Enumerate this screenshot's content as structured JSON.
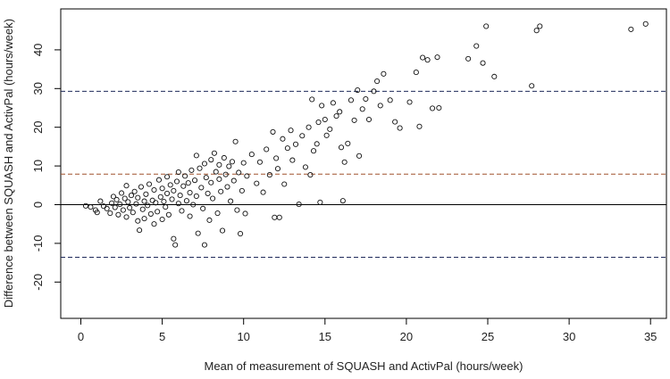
{
  "chart_data": {
    "type": "scatter",
    "title": "",
    "xlabel": "Mean of measurement of SQUASH and ActivPal (hours/week)",
    "ylabel": "Difference between SQUASH and ActivPal (hours/week)",
    "xlim": [
      -1,
      36.5
    ],
    "ylim": [
      -30,
      49
    ],
    "xticks": [
      0,
      5,
      10,
      15,
      20,
      25,
      30,
      35
    ],
    "yticks": [
      -20,
      -10,
      0,
      10,
      20,
      30,
      40
    ],
    "grid": false,
    "reference_lines": [
      {
        "name": "zero-line",
        "y": 0,
        "style": "solid",
        "color": "#000000"
      },
      {
        "name": "mean-difference-line",
        "y": 7.9,
        "style": "dashed",
        "color": "#a0522d"
      },
      {
        "name": "upper-limit-of-agreement-line",
        "y": 29.3,
        "style": "dashed",
        "color": "#1f2a5a"
      },
      {
        "name": "lower-limit-of-agreement-line",
        "y": -13.6,
        "style": "dashed",
        "color": "#1f2a5a"
      }
    ],
    "series": [
      {
        "name": "participants",
        "marker": "open-circle",
        "points": [
          [
            0.3,
            -0.3
          ],
          [
            0.6,
            -0.6
          ],
          [
            0.9,
            -1.4
          ],
          [
            1.0,
            -2.0
          ],
          [
            1.2,
            0.9
          ],
          [
            1.4,
            -0.4
          ],
          [
            1.6,
            -1.0
          ],
          [
            1.8,
            -2.2
          ],
          [
            1.9,
            0.4
          ],
          [
            2.0,
            2.1
          ],
          [
            2.1,
            -0.7
          ],
          [
            2.2,
            1.3
          ],
          [
            2.3,
            -2.6
          ],
          [
            2.4,
            0.1
          ],
          [
            2.5,
            3.0
          ],
          [
            2.6,
            -1.4
          ],
          [
            2.7,
            1.6
          ],
          [
            2.8,
            -3.2
          ],
          [
            2.8,
            4.9
          ],
          [
            2.9,
            0.7
          ],
          [
            3.0,
            -0.8
          ],
          [
            3.1,
            2.4
          ],
          [
            3.2,
            -2.0
          ],
          [
            3.3,
            3.4
          ],
          [
            3.4,
            0.2
          ],
          [
            3.5,
            -4.2
          ],
          [
            3.5,
            1.8
          ],
          [
            3.6,
            -6.6
          ],
          [
            3.7,
            4.6
          ],
          [
            3.8,
            -1.2
          ],
          [
            3.9,
            0.9
          ],
          [
            3.9,
            -3.6
          ],
          [
            4.0,
            2.7
          ],
          [
            4.1,
            -0.2
          ],
          [
            4.2,
            5.3
          ],
          [
            4.3,
            -2.4
          ],
          [
            4.4,
            1.1
          ],
          [
            4.5,
            -5.0
          ],
          [
            4.5,
            3.8
          ],
          [
            4.6,
            0.5
          ],
          [
            4.7,
            -1.8
          ],
          [
            4.8,
            6.4
          ],
          [
            4.9,
            2.0
          ],
          [
            5.0,
            -3.8
          ],
          [
            5.0,
            4.2
          ],
          [
            5.1,
            0.8
          ],
          [
            5.2,
            -0.6
          ],
          [
            5.3,
            7.2
          ],
          [
            5.3,
            2.9
          ],
          [
            5.4,
            -2.6
          ],
          [
            5.5,
            5.1
          ],
          [
            5.6,
            1.4
          ],
          [
            5.7,
            -8.8
          ],
          [
            5.7,
            3.6
          ],
          [
            5.8,
            -10.4
          ],
          [
            5.9,
            6.0
          ],
          [
            6.0,
            0.3
          ],
          [
            6.0,
            8.4
          ],
          [
            6.1,
            2.4
          ],
          [
            6.2,
            -1.6
          ],
          [
            6.3,
            4.8
          ],
          [
            6.4,
            7.4
          ],
          [
            6.5,
            1.0
          ],
          [
            6.6,
            5.6
          ],
          [
            6.7,
            -3.0
          ],
          [
            6.7,
            3.1
          ],
          [
            6.8,
            8.9
          ],
          [
            6.9,
            0.0
          ],
          [
            7.0,
            6.3
          ],
          [
            7.1,
            12.7
          ],
          [
            7.1,
            2.2
          ],
          [
            7.2,
            -7.4
          ],
          [
            7.3,
            9.4
          ],
          [
            7.4,
            4.4
          ],
          [
            7.5,
            -1.0
          ],
          [
            7.6,
            10.6
          ],
          [
            7.6,
            -10.4
          ],
          [
            7.7,
            7.0
          ],
          [
            7.8,
            2.9
          ],
          [
            7.9,
            -4.0
          ],
          [
            8.0,
            11.6
          ],
          [
            8.0,
            5.7
          ],
          [
            8.1,
            1.6
          ],
          [
            8.2,
            13.3
          ],
          [
            8.3,
            8.5
          ],
          [
            8.4,
            -2.2
          ],
          [
            8.5,
            6.6
          ],
          [
            8.5,
            10.3
          ],
          [
            8.6,
            3.4
          ],
          [
            8.7,
            -6.7
          ],
          [
            8.8,
            12.1
          ],
          [
            8.9,
            7.8
          ],
          [
            9.0,
            4.6
          ],
          [
            9.1,
            9.9
          ],
          [
            9.2,
            0.9
          ],
          [
            9.3,
            11.1
          ],
          [
            9.4,
            6.2
          ],
          [
            9.5,
            16.3
          ],
          [
            9.6,
            -1.4
          ],
          [
            9.7,
            8.3
          ],
          [
            9.8,
            -7.5
          ],
          [
            9.9,
            3.6
          ],
          [
            10.0,
            10.8
          ],
          [
            10.1,
            -2.3
          ],
          [
            10.2,
            7.4
          ],
          [
            10.5,
            13.0
          ],
          [
            10.8,
            5.5
          ],
          [
            11.0,
            11.0
          ],
          [
            11.2,
            3.2
          ],
          [
            11.4,
            14.3
          ],
          [
            11.6,
            7.7
          ],
          [
            11.8,
            18.8
          ],
          [
            11.9,
            -3.3
          ],
          [
            12.0,
            12.0
          ],
          [
            12.1,
            9.3
          ],
          [
            12.2,
            -3.3
          ],
          [
            12.4,
            17.0
          ],
          [
            12.5,
            5.3
          ],
          [
            12.7,
            14.6
          ],
          [
            12.9,
            19.2
          ],
          [
            13.0,
            11.5
          ],
          [
            13.2,
            15.6
          ],
          [
            13.4,
            0.1
          ],
          [
            13.6,
            17.8
          ],
          [
            13.8,
            9.7
          ],
          [
            14.0,
            20.0
          ],
          [
            14.1,
            7.7
          ],
          [
            14.2,
            27.2
          ],
          [
            14.3,
            13.9
          ],
          [
            14.5,
            15.7
          ],
          [
            14.6,
            21.3
          ],
          [
            14.7,
            0.6
          ],
          [
            14.8,
            25.6
          ],
          [
            15.0,
            22.0
          ],
          [
            15.1,
            17.9
          ],
          [
            15.3,
            19.5
          ],
          [
            15.5,
            26.3
          ],
          [
            15.7,
            22.9
          ],
          [
            15.9,
            24.0
          ],
          [
            16.0,
            14.8
          ],
          [
            16.1,
            1.0
          ],
          [
            16.2,
            11.0
          ],
          [
            16.4,
            15.8
          ],
          [
            16.6,
            27.0
          ],
          [
            16.8,
            21.8
          ],
          [
            17.0,
            29.6
          ],
          [
            17.1,
            12.6
          ],
          [
            17.3,
            24.7
          ],
          [
            17.5,
            27.3
          ],
          [
            17.7,
            22.0
          ],
          [
            18.0,
            29.3
          ],
          [
            18.2,
            31.9
          ],
          [
            18.4,
            25.6
          ],
          [
            18.6,
            33.8
          ],
          [
            19.0,
            27.0
          ],
          [
            19.3,
            21.4
          ],
          [
            19.6,
            19.8
          ],
          [
            20.2,
            26.5
          ],
          [
            20.6,
            34.2
          ],
          [
            20.8,
            20.2
          ],
          [
            21.0,
            38.0
          ],
          [
            21.3,
            37.4
          ],
          [
            21.6,
            24.9
          ],
          [
            21.9,
            38.1
          ],
          [
            22.0,
            25.0
          ],
          [
            23.8,
            37.7
          ],
          [
            24.3,
            41.0
          ],
          [
            24.7,
            36.6
          ],
          [
            24.9,
            46.1
          ],
          [
            25.4,
            33.1
          ],
          [
            27.7,
            30.7
          ],
          [
            28.0,
            45.0
          ],
          [
            28.2,
            46.1
          ],
          [
            33.8,
            45.3
          ],
          [
            34.7,
            46.7
          ]
        ]
      }
    ]
  }
}
